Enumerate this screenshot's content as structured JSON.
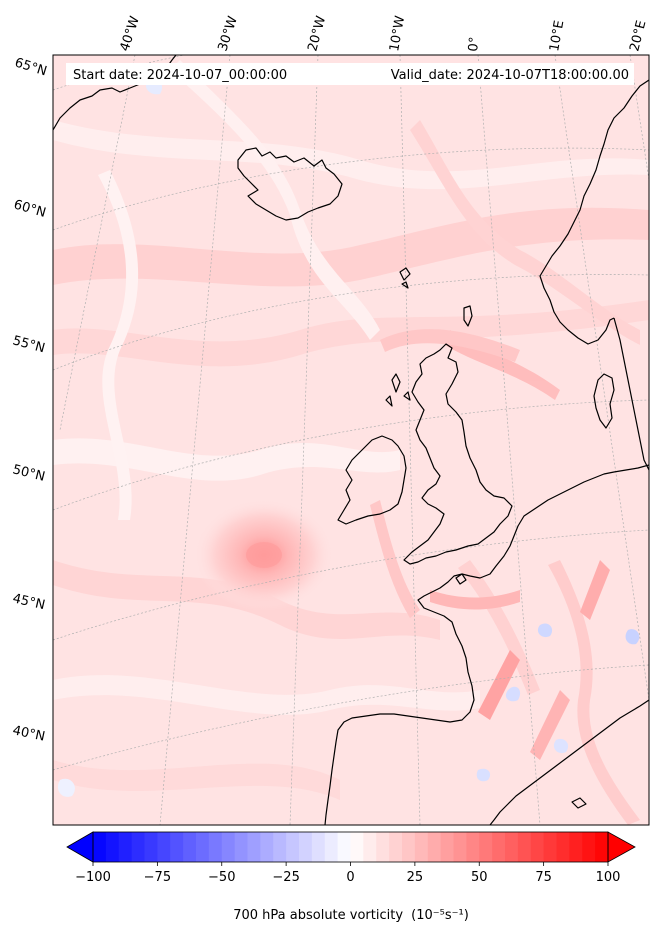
{
  "header": {
    "start_date": "Start date: 2024-10-07_00:00:00",
    "valid_date": "Valid_date: 2024-10-07T18:00:00.00"
  },
  "lon_labels": [
    "40°W",
    "30°W",
    "20°W",
    "10°W",
    "0°",
    "10°E",
    "20°E"
  ],
  "lat_labels": [
    "65°N",
    "60°N",
    "55°N",
    "50°N",
    "45°N",
    "40°N"
  ],
  "colorbar": {
    "ticks": [
      "−100",
      "−75",
      "−50",
      "−25",
      "0",
      "25",
      "50",
      "75",
      "100"
    ],
    "min": -100,
    "max": 100,
    "levels": 40,
    "low_color": "#0000ff",
    "mid_color": "#ffffff",
    "high_color": "#ff0000",
    "label": "700 hPa absolute vorticity",
    "unit": "(10⁻⁵s⁻¹)"
  },
  "colors": {
    "field_base": "#ffe3e3",
    "coast": "#000000",
    "grid": "#b0b0b0"
  }
}
